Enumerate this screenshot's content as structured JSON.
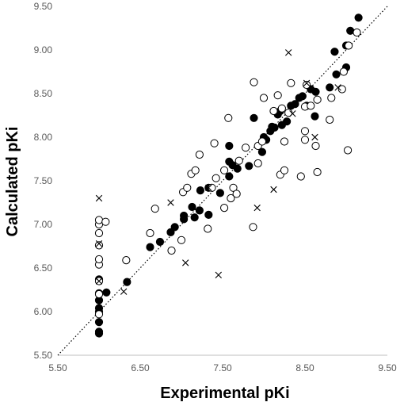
{
  "chart_data": {
    "type": "scatter",
    "title": "",
    "xlabel": "Experimental pKi",
    "ylabel": "Calculated pKi",
    "xlim": [
      5.5,
      9.5
    ],
    "ylim": [
      5.5,
      9.5
    ],
    "x_ticks": [
      "5.50",
      "6.50",
      "7.50",
      "8.50",
      "9.50"
    ],
    "y_ticks": [
      "5.50",
      "6.00",
      "6.50",
      "7.00",
      "7.50",
      "8.00",
      "8.50",
      "9.00",
      "9.50"
    ],
    "grid": false,
    "legend": "none",
    "reference_line": {
      "from": [
        5.5,
        5.5
      ],
      "to": [
        9.5,
        9.5
      ],
      "style": "dotted"
    },
    "series": [
      {
        "marker": "filled-circle",
        "color": "#000000",
        "points": [
          [
            6.0,
            5.75
          ],
          [
            6.0,
            5.77
          ],
          [
            6.0,
            5.88
          ],
          [
            6.0,
            6.0
          ],
          [
            6.0,
            6.04
          ],
          [
            6.0,
            6.13
          ],
          [
            6.0,
            6.21
          ],
          [
            6.0,
            6.37
          ],
          [
            6.09,
            6.22
          ],
          [
            6.34,
            6.34
          ],
          [
            6.62,
            6.74
          ],
          [
            6.74,
            6.8
          ],
          [
            6.87,
            6.91
          ],
          [
            6.92,
            6.97
          ],
          [
            7.03,
            7.06
          ],
          [
            7.03,
            7.1
          ],
          [
            7.13,
            7.2
          ],
          [
            7.16,
            7.08
          ],
          [
            7.22,
            7.16
          ],
          [
            7.23,
            7.39
          ],
          [
            7.33,
            7.11
          ],
          [
            7.33,
            7.42
          ],
          [
            7.47,
            7.36
          ],
          [
            7.58,
            7.55
          ],
          [
            7.62,
            7.68
          ],
          [
            7.68,
            7.64
          ],
          [
            7.58,
            7.72
          ],
          [
            7.58,
            7.9
          ],
          [
            7.82,
            7.67
          ],
          [
            7.88,
            8.22
          ],
          [
            7.98,
            7.83
          ],
          [
            8.0,
            8.0
          ],
          [
            8.03,
            7.97
          ],
          [
            8.08,
            8.07
          ],
          [
            8.1,
            8.12
          ],
          [
            8.13,
            8.11
          ],
          [
            8.17,
            8.26
          ],
          [
            8.2,
            8.3
          ],
          [
            8.22,
            8.14
          ],
          [
            8.28,
            8.18
          ],
          [
            8.33,
            8.36
          ],
          [
            8.38,
            8.38
          ],
          [
            8.43,
            8.45
          ],
          [
            8.47,
            8.47
          ],
          [
            8.52,
            8.36
          ],
          [
            8.57,
            8.55
          ],
          [
            8.62,
            8.24
          ],
          [
            8.63,
            8.52
          ],
          [
            8.8,
            8.57
          ],
          [
            8.86,
            8.98
          ],
          [
            8.88,
            8.72
          ],
          [
            9.0,
            9.05
          ],
          [
            9.0,
            8.8
          ],
          [
            9.05,
            9.22
          ],
          [
            9.15,
            9.37
          ]
        ]
      },
      {
        "marker": "open-circle",
        "color": "#000000",
        "points": [
          [
            6.0,
            5.97
          ],
          [
            6.0,
            6.2
          ],
          [
            6.0,
            6.35
          ],
          [
            6.0,
            6.54
          ],
          [
            6.0,
            6.6
          ],
          [
            6.0,
            6.76
          ],
          [
            6.0,
            6.9
          ],
          [
            6.0,
            7.0
          ],
          [
            6.0,
            7.05
          ],
          [
            6.08,
            7.03
          ],
          [
            6.33,
            6.59
          ],
          [
            6.62,
            6.9
          ],
          [
            6.68,
            7.18
          ],
          [
            6.88,
            6.7
          ],
          [
            7.0,
            6.82
          ],
          [
            7.02,
            7.37
          ],
          [
            7.07,
            7.42
          ],
          [
            7.12,
            7.58
          ],
          [
            7.17,
            7.62
          ],
          [
            7.22,
            7.8
          ],
          [
            7.32,
            6.95
          ],
          [
            7.37,
            7.42
          ],
          [
            7.4,
            7.93
          ],
          [
            7.42,
            7.53
          ],
          [
            7.52,
            7.19
          ],
          [
            7.52,
            7.62
          ],
          [
            7.57,
            8.22
          ],
          [
            7.6,
            7.3
          ],
          [
            7.63,
            7.42
          ],
          [
            7.67,
            7.35
          ],
          [
            7.7,
            7.73
          ],
          [
            7.78,
            7.88
          ],
          [
            7.87,
            6.97
          ],
          [
            7.88,
            8.63
          ],
          [
            7.93,
            7.7
          ],
          [
            7.93,
            7.9
          ],
          [
            7.98,
            7.95
          ],
          [
            8.0,
            8.45
          ],
          [
            8.12,
            8.3
          ],
          [
            8.17,
            8.48
          ],
          [
            8.2,
            7.57
          ],
          [
            8.22,
            8.33
          ],
          [
            8.25,
            7.62
          ],
          [
            8.25,
            7.95
          ],
          [
            8.3,
            8.28
          ],
          [
            8.33,
            8.62
          ],
          [
            8.45,
            7.55
          ],
          [
            8.5,
            7.97
          ],
          [
            8.5,
            8.07
          ],
          [
            8.5,
            8.35
          ],
          [
            8.52,
            8.6
          ],
          [
            8.57,
            8.36
          ],
          [
            8.63,
            7.9
          ],
          [
            8.65,
            7.6
          ],
          [
            8.65,
            8.43
          ],
          [
            8.8,
            8.2
          ],
          [
            8.82,
            8.45
          ],
          [
            8.95,
            8.55
          ],
          [
            8.97,
            8.75
          ],
          [
            9.02,
            7.85
          ],
          [
            9.03,
            9.05
          ],
          [
            9.13,
            9.2
          ]
        ]
      },
      {
        "marker": "cross",
        "color": "#000000",
        "points": [
          [
            6.0,
            7.3
          ],
          [
            6.0,
            6.78
          ],
          [
            6.0,
            6.35
          ],
          [
            6.3,
            6.23
          ],
          [
            6.87,
            7.25
          ],
          [
            7.05,
            6.56
          ],
          [
            7.45,
            6.42
          ],
          [
            7.33,
            7.42
          ],
          [
            7.92,
            7.19
          ],
          [
            8.12,
            7.4
          ],
          [
            8.3,
            8.97
          ],
          [
            8.35,
            8.27
          ],
          [
            8.52,
            8.62
          ],
          [
            8.62,
            8.0
          ],
          [
            8.9,
            8.57
          ]
        ]
      }
    ]
  }
}
